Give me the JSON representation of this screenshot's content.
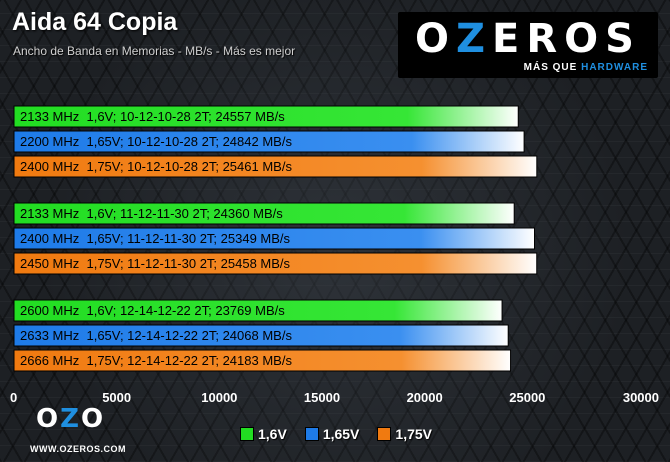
{
  "title": "Aida 64 Copia",
  "subtitle": "Ancho de Banda en Memorias - MB/s - Más es mejor",
  "logo": {
    "word_pre": "O",
    "word_z": "Z",
    "word_post": "EROS",
    "tag_pre": "MÁS QUE ",
    "tag_hw": "HARDWARE"
  },
  "watermark": {
    "mark_o": "O",
    "mark_z": "Z",
    "mark_o2": "O",
    "url": "WWW.OZEROS.COM"
  },
  "colors": {
    "v16": "#22dd22",
    "v165": "#1e7be8",
    "v175": "#f07a10",
    "accent": "#1f8fe0"
  },
  "chart_data": {
    "type": "bar",
    "orientation": "horizontal",
    "xlim": [
      0,
      30000
    ],
    "xticks": [
      "0",
      "5000",
      "10000",
      "15000",
      "20000",
      "25000",
      "30000"
    ],
    "legend_placement": "bottom",
    "series": [
      {
        "name": "1,6V",
        "color": "#22dd22"
      },
      {
        "name": "1,65V",
        "color": "#1e7be8"
      },
      {
        "name": "1,75V",
        "color": "#f07a10"
      }
    ],
    "groups": [
      {
        "bars": [
          {
            "label": "2133 MHz  1,6V; 10-12-10-28 2T; 24557 MB/s",
            "value": 24557,
            "series": "1,6V"
          },
          {
            "label": "2200 MHz  1,65V; 10-12-10-28 2T; 24842 MB/s",
            "value": 24842,
            "series": "1,65V"
          },
          {
            "label": "2400 MHz  1,75V; 10-12-10-28 2T; 25461 MB/s",
            "value": 25461,
            "series": "1,75V"
          }
        ]
      },
      {
        "bars": [
          {
            "label": "2133 MHz  1,6V; 11-12-11-30 2T; 24360 MB/s",
            "value": 24360,
            "series": "1,6V"
          },
          {
            "label": "2400 MHz  1,65V; 11-12-11-30 2T; 25349 MB/s",
            "value": 25349,
            "series": "1,65V"
          },
          {
            "label": "2450 MHz  1,75V; 11-12-11-30 2T; 25458 MB/s",
            "value": 25458,
            "series": "1,75V"
          }
        ]
      },
      {
        "bars": [
          {
            "label": "2600 MHz  1,6V; 12-14-12-22 2T; 23769 MB/s",
            "value": 23769,
            "series": "1,6V"
          },
          {
            "label": "2633 MHz  1,65V; 12-14-12-22 2T; 24068 MB/s",
            "value": 24068,
            "series": "1,65V"
          },
          {
            "label": "2666 MHz  1,75V; 12-14-12-22 2T; 24183 MB/s",
            "value": 24183,
            "series": "1,75V"
          }
        ]
      }
    ]
  }
}
